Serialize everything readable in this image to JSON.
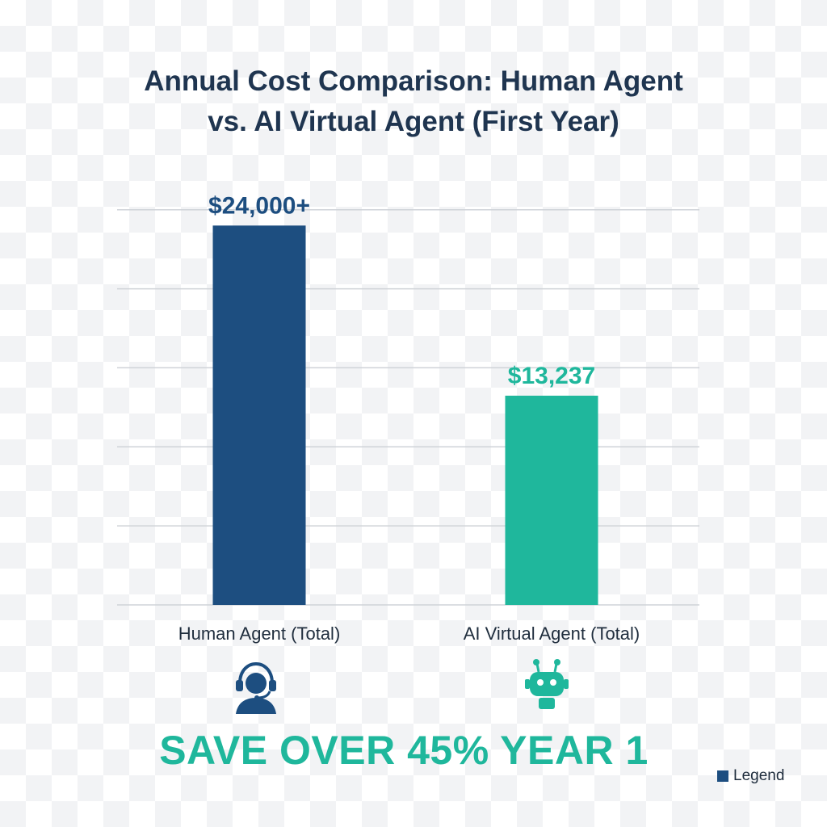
{
  "chart_data": {
    "type": "bar",
    "title": "Annual Cost Comparison: Human Agent vs. AI Virtual Agent (First Year)",
    "title_lines": [
      "Annual Cost Comparison: Human Agent",
      "vs. AI Virtual Agent (First Year)"
    ],
    "categories": [
      "Human Agent (Total)",
      "AI Virtual Agent (Total)"
    ],
    "values": [
      24000,
      13237
    ],
    "data_labels": [
      "$24,000+",
      "$13,237"
    ],
    "colors": [
      "#1d4e80",
      "#1fb79c"
    ],
    "label_colors": [
      "#1d4e80",
      "#1fb79c"
    ],
    "ylim": [
      0,
      28000
    ],
    "grid": true,
    "legend": {
      "label": "Legend",
      "placement": "bottom-right"
    }
  },
  "icons": [
    "headset-agent-icon",
    "robot-icon"
  ],
  "banner": "SAVE OVER 45% YEAR 1"
}
